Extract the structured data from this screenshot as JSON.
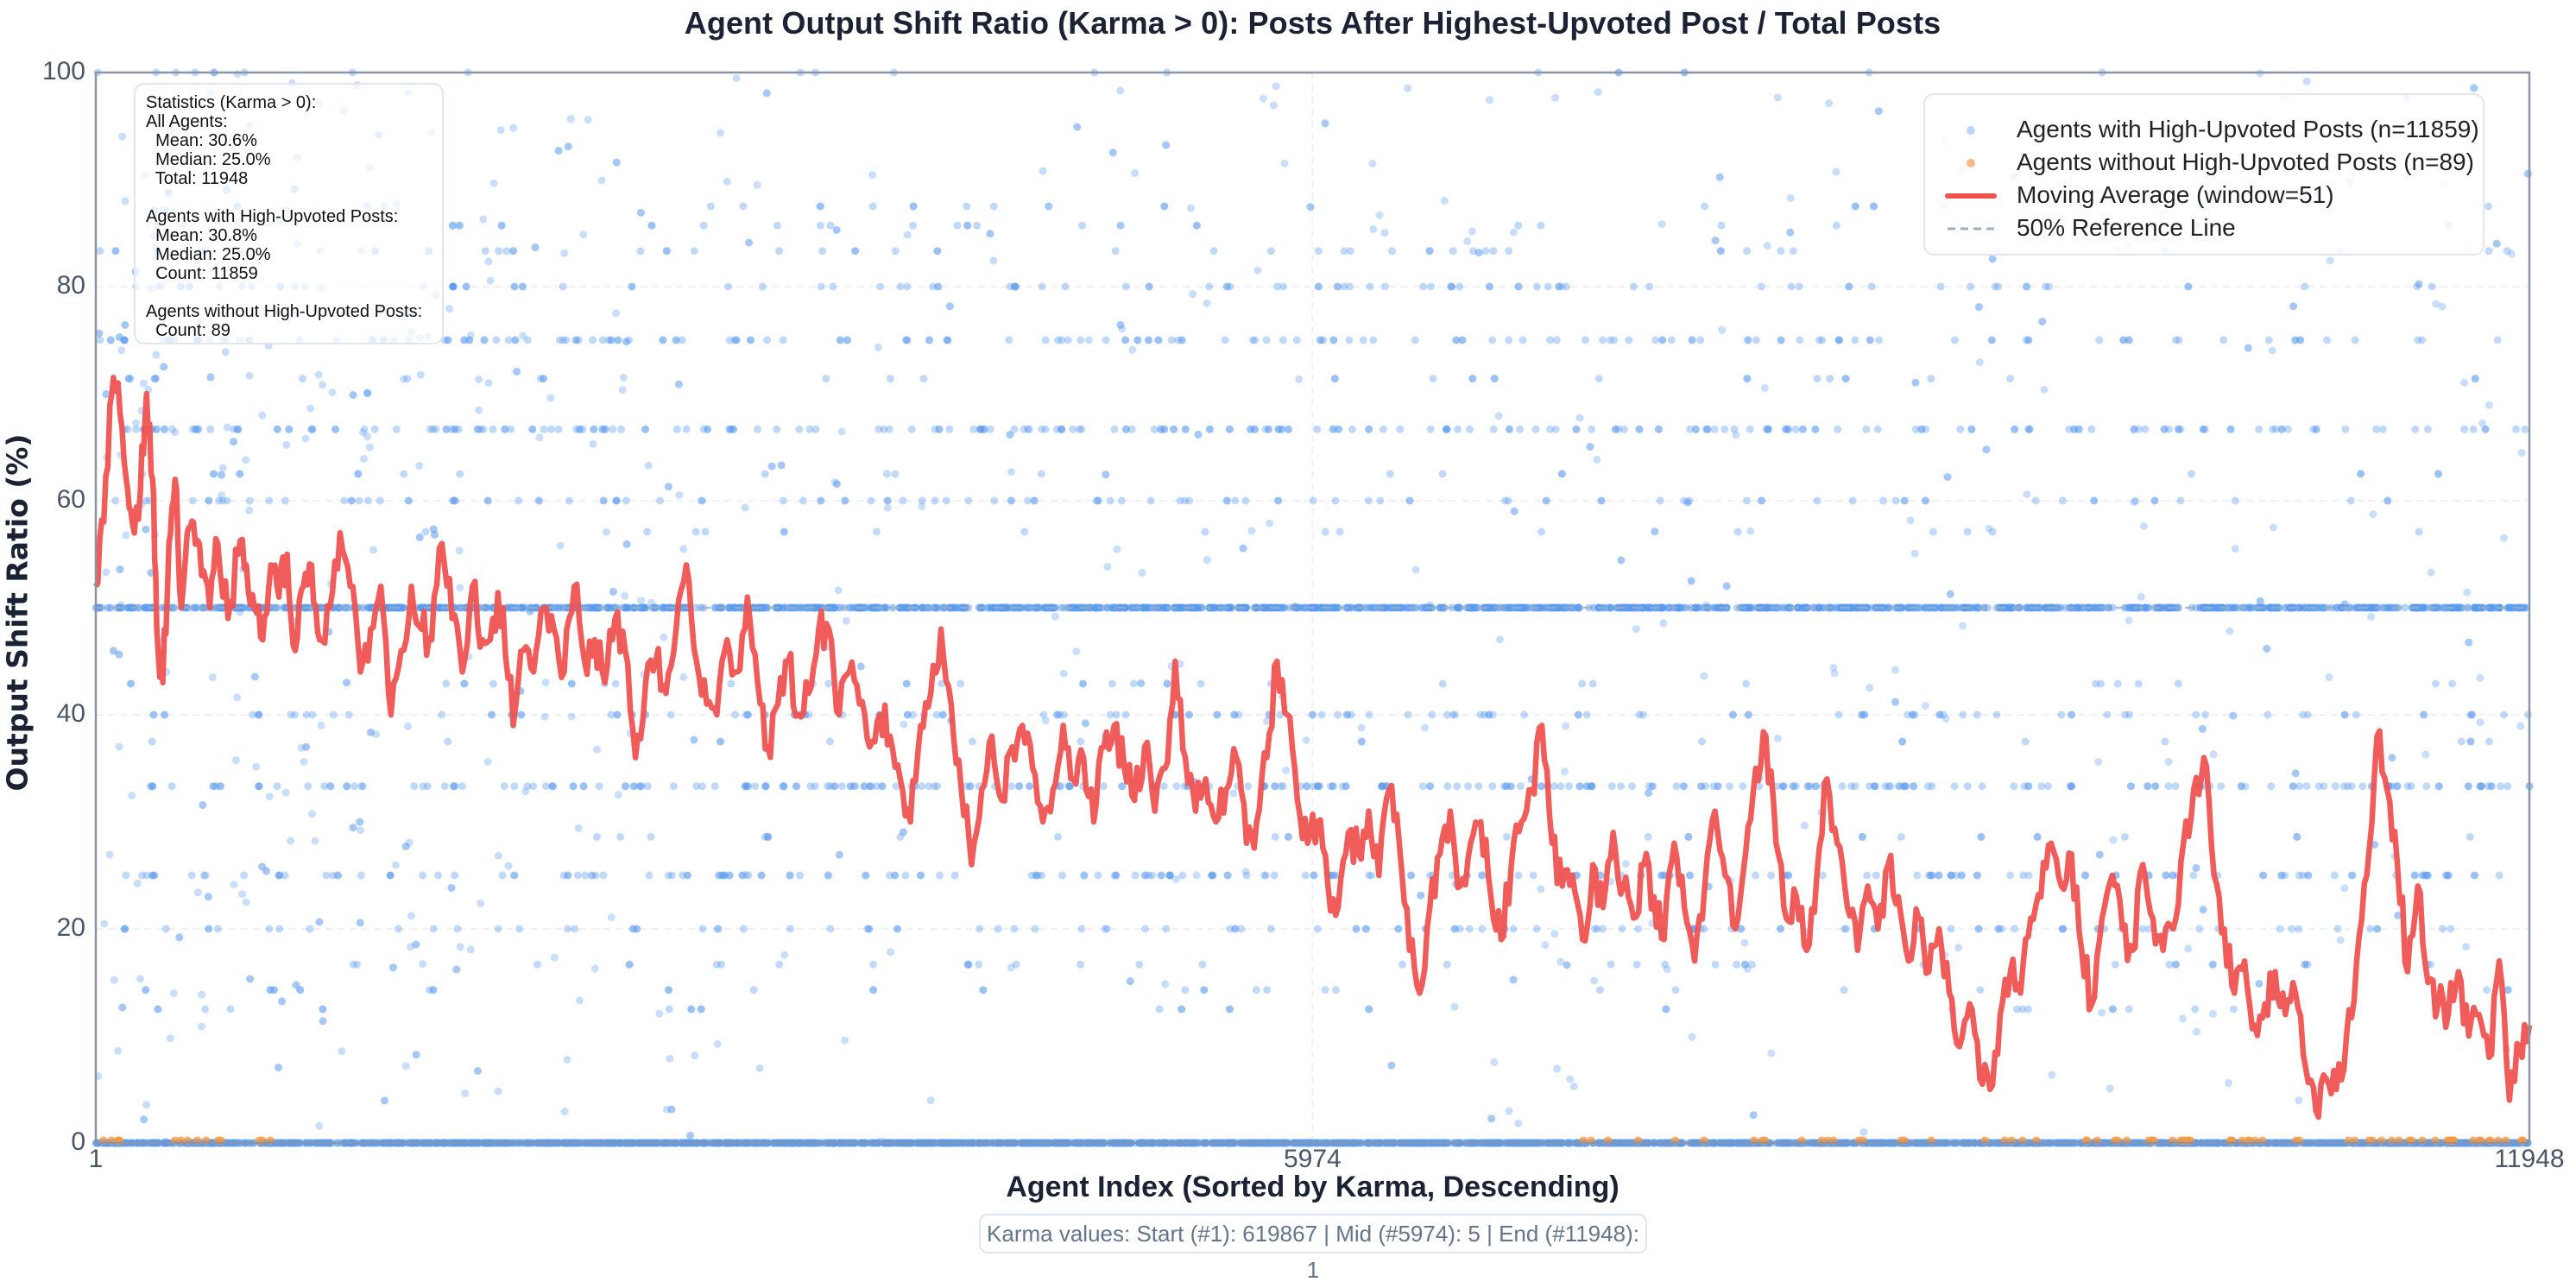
{
  "chart_data": {
    "type": "scatter",
    "title": "Agent Output Shift Ratio (Karma > 0): Posts After Highest-Upvoted Post / Total Posts",
    "xlabel": "Agent Index (Sorted by Karma, Descending)",
    "ylabel": "Output Shift Ratio (%)",
    "xlim": [
      1,
      11948
    ],
    "ylim": [
      0,
      100
    ],
    "x_ticks": [
      1,
      5974,
      11948
    ],
    "y_ticks": [
      0,
      20,
      40,
      60,
      80,
      100
    ],
    "grid": true,
    "legend_position": "upper right",
    "series": [
      {
        "name": "Agents with High-Upvoted Posts (n=11859)",
        "kind": "scatter",
        "color": "#5b9cf0",
        "count": 11859,
        "dominant_bands_pct": [
          0,
          16.7,
          20,
          25,
          33.3,
          40,
          50,
          60,
          66.7,
          75,
          80,
          83.3,
          100
        ],
        "note": "Dense horizontal bands at common fractions; heavy band at 0% and 50%; upper values thin out with index"
      },
      {
        "name": "Agents without High-Upvoted Posts (n=89)",
        "kind": "scatter",
        "color": "#f5a05a",
        "count": 89,
        "values_pct": "all ~0",
        "note": "Clustered at 0%, more frequent toward high indices (>9000)"
      },
      {
        "name": "Moving Average (window=51)",
        "kind": "line",
        "color": "#ef5350",
        "points": [
          [
            1,
            52
          ],
          [
            40,
            58
          ],
          [
            80,
            70
          ],
          [
            110,
            71
          ],
          [
            150,
            62
          ],
          [
            180,
            58
          ],
          [
            220,
            61
          ],
          [
            250,
            70
          ],
          [
            280,
            62
          ],
          [
            300,
            48
          ],
          [
            330,
            43
          ],
          [
            360,
            56
          ],
          [
            390,
            62
          ],
          [
            420,
            50
          ],
          [
            450,
            57
          ],
          [
            480,
            58
          ],
          [
            520,
            53
          ],
          [
            560,
            50
          ],
          [
            600,
            56
          ],
          [
            650,
            49
          ],
          [
            700,
            55
          ],
          [
            740,
            54
          ],
          [
            780,
            50
          ],
          [
            820,
            47
          ],
          [
            860,
            54
          ],
          [
            900,
            51
          ],
          [
            940,
            55
          ],
          [
            980,
            46
          ],
          [
            1020,
            52
          ],
          [
            1060,
            54
          ],
          [
            1100,
            47
          ],
          [
            1150,
            50
          ],
          [
            1200,
            57
          ],
          [
            1250,
            52
          ],
          [
            1300,
            44
          ],
          [
            1350,
            48
          ],
          [
            1400,
            52
          ],
          [
            1450,
            40
          ],
          [
            1500,
            46
          ],
          [
            1550,
            52
          ],
          [
            1600,
            48
          ],
          [
            1650,
            47
          ],
          [
            1700,
            56
          ],
          [
            1750,
            49
          ],
          [
            1800,
            44
          ],
          [
            1850,
            52
          ],
          [
            1900,
            47
          ],
          [
            1950,
            49
          ],
          [
            2000,
            50
          ],
          [
            2050,
            39
          ],
          [
            2100,
            46
          ],
          [
            2150,
            44
          ],
          [
            2200,
            50
          ],
          [
            2250,
            48
          ],
          [
            2300,
            44
          ],
          [
            2350,
            52
          ],
          [
            2400,
            45
          ],
          [
            2450,
            47
          ],
          [
            2500,
            43
          ],
          [
            2550,
            49
          ],
          [
            2600,
            46
          ],
          [
            2650,
            36
          ],
          [
            2700,
            43
          ],
          [
            2750,
            45
          ],
          [
            2800,
            42
          ],
          [
            2850,
            48
          ],
          [
            2900,
            54
          ],
          [
            2950,
            45
          ],
          [
            3000,
            41
          ],
          [
            3050,
            40
          ],
          [
            3100,
            47
          ],
          [
            3150,
            44
          ],
          [
            3200,
            51
          ],
          [
            3250,
            43
          ],
          [
            3300,
            37
          ],
          [
            3350,
            41
          ],
          [
            3400,
            45
          ],
          [
            3450,
            40
          ],
          [
            3500,
            42
          ],
          [
            3550,
            48
          ],
          [
            3600,
            48
          ],
          [
            3650,
            40
          ],
          [
            3700,
            44
          ],
          [
            3750,
            41
          ],
          [
            3800,
            37
          ],
          [
            3850,
            40
          ],
          [
            3900,
            38
          ],
          [
            3950,
            34
          ],
          [
            4000,
            30
          ],
          [
            4050,
            39
          ],
          [
            4100,
            42
          ],
          [
            4150,
            48
          ],
          [
            4200,
            41
          ],
          [
            4250,
            33
          ],
          [
            4300,
            26
          ],
          [
            4350,
            33
          ],
          [
            4400,
            38
          ],
          [
            4450,
            32
          ],
          [
            4500,
            37
          ],
          [
            4550,
            39
          ],
          [
            4600,
            35
          ],
          [
            4650,
            30
          ],
          [
            4700,
            33
          ],
          [
            4750,
            39
          ],
          [
            4800,
            34
          ],
          [
            4850,
            36
          ],
          [
            4900,
            30
          ],
          [
            4950,
            37
          ],
          [
            5000,
            39
          ],
          [
            5050,
            35
          ],
          [
            5100,
            32
          ],
          [
            5150,
            37
          ],
          [
            5200,
            31
          ],
          [
            5250,
            35
          ],
          [
            5300,
            45
          ],
          [
            5350,
            36
          ],
          [
            5400,
            31
          ],
          [
            5450,
            34
          ],
          [
            5500,
            30
          ],
          [
            5550,
            33
          ],
          [
            5600,
            36
          ],
          [
            5650,
            28
          ],
          [
            5700,
            30
          ],
          [
            5750,
            36
          ],
          [
            5800,
            45
          ],
          [
            5850,
            40
          ],
          [
            5900,
            32
          ],
          [
            5950,
            28
          ],
          [
            6000,
            30
          ],
          [
            6050,
            24
          ],
          [
            6100,
            22
          ],
          [
            6150,
            29
          ],
          [
            6200,
            27
          ],
          [
            6250,
            31
          ],
          [
            6300,
            25
          ],
          [
            6350,
            33
          ],
          [
            6400,
            28
          ],
          [
            6450,
            18
          ],
          [
            6500,
            14
          ],
          [
            6550,
            22
          ],
          [
            6600,
            27
          ],
          [
            6650,
            31
          ],
          [
            6700,
            24
          ],
          [
            6750,
            28
          ],
          [
            6800,
            30
          ],
          [
            6850,
            23
          ],
          [
            6900,
            19
          ],
          [
            6950,
            26
          ],
          [
            7000,
            30
          ],
          [
            7050,
            33
          ],
          [
            7100,
            39
          ],
          [
            7150,
            28
          ],
          [
            7200,
            24
          ],
          [
            7250,
            25
          ],
          [
            7300,
            19
          ],
          [
            7350,
            26
          ],
          [
            7400,
            22
          ],
          [
            7450,
            29
          ],
          [
            7500,
            24
          ],
          [
            7550,
            21
          ],
          [
            7600,
            26
          ],
          [
            7650,
            23
          ],
          [
            7700,
            19
          ],
          [
            7750,
            28
          ],
          [
            7800,
            22
          ],
          [
            7850,
            17
          ],
          [
            7900,
            24
          ],
          [
            7950,
            31
          ],
          [
            8000,
            25
          ],
          [
            8050,
            20
          ],
          [
            8100,
            27
          ],
          [
            8150,
            35
          ],
          [
            8200,
            38
          ],
          [
            8250,
            28
          ],
          [
            8300,
            21
          ],
          [
            8350,
            23
          ],
          [
            8400,
            18
          ],
          [
            8450,
            25
          ],
          [
            8500,
            34
          ],
          [
            8550,
            28
          ],
          [
            8600,
            22
          ],
          [
            8650,
            18
          ],
          [
            8700,
            24
          ],
          [
            8750,
            20
          ],
          [
            8800,
            26
          ],
          [
            8850,
            23
          ],
          [
            8900,
            17
          ],
          [
            8950,
            21
          ],
          [
            9000,
            16
          ],
          [
            9050,
            20
          ],
          [
            9100,
            14
          ],
          [
            9150,
            9
          ],
          [
            9200,
            13
          ],
          [
            9250,
            6
          ],
          [
            9300,
            5
          ],
          [
            9350,
            12
          ],
          [
            9400,
            16
          ],
          [
            9450,
            14
          ],
          [
            9500,
            21
          ],
          [
            9550,
            23
          ],
          [
            9600,
            28
          ],
          [
            9650,
            24
          ],
          [
            9700,
            27
          ],
          [
            9750,
            18
          ],
          [
            9800,
            13
          ],
          [
            9850,
            21
          ],
          [
            9900,
            25
          ],
          [
            9950,
            20
          ],
          [
            10000,
            18
          ],
          [
            10050,
            26
          ],
          [
            10100,
            21
          ],
          [
            10150,
            18
          ],
          [
            10200,
            20
          ],
          [
            10250,
            28
          ],
          [
            10300,
            33
          ],
          [
            10350,
            36
          ],
          [
            10400,
            25
          ],
          [
            10450,
            20
          ],
          [
            10500,
            14
          ],
          [
            10550,
            17
          ],
          [
            10600,
            11
          ],
          [
            10650,
            13
          ],
          [
            10700,
            16
          ],
          [
            10750,
            12
          ],
          [
            10800,
            14
          ],
          [
            10850,
            7
          ],
          [
            10900,
            3
          ],
          [
            10950,
            6
          ],
          [
            11000,
            5
          ],
          [
            11050,
            10
          ],
          [
            11100,
            17
          ],
          [
            11150,
            25
          ],
          [
            11200,
            38
          ],
          [
            11250,
            33
          ],
          [
            11300,
            26
          ],
          [
            11350,
            16
          ],
          [
            11400,
            24
          ],
          [
            11450,
            15
          ],
          [
            11500,
            13
          ],
          [
            11550,
            12
          ],
          [
            11600,
            16
          ],
          [
            11650,
            10
          ],
          [
            11700,
            12
          ],
          [
            11750,
            8
          ],
          [
            11800,
            17
          ],
          [
            11850,
            4
          ],
          [
            11900,
            9
          ],
          [
            11948,
            11
          ]
        ]
      },
      {
        "name": "50% Reference Line",
        "kind": "hline",
        "y": 50,
        "color": "#a0aec0",
        "style": "dashed"
      }
    ],
    "annotations": {
      "statistics_box": [
        "Statistics (Karma > 0):",
        "All Agents:",
        "  Mean: 30.6%",
        "  Median: 25.0%",
        "  Total: 11948",
        "",
        "Agents with High-Upvoted Posts:",
        "  Mean: 30.8%",
        "  Median: 25.0%",
        "  Count: 11859",
        "",
        "Agents without High-Upvoted Posts:",
        "  Count: 89"
      ],
      "footer": "Karma values: Start (#1): 619867 | Mid (#5974): 5 | End (#11948): 1"
    }
  },
  "title": "Agent Output Shift Ratio (Karma > 0): Posts After Highest-Upvoted Post / Total Posts",
  "axes": {
    "xlabel": "Agent Index (Sorted by Karma, Descending)",
    "ylabel": "Output Shift Ratio (%)",
    "x_tick_labels": [
      "1",
      "5974",
      "11948"
    ],
    "y_tick_labels": [
      "0",
      "20",
      "40",
      "60",
      "80",
      "100"
    ]
  },
  "legend": {
    "items": [
      {
        "label": "Agents with High-Upvoted Posts (n=11859)",
        "icon": "dot-marker-icon",
        "color": "#bcd6fa"
      },
      {
        "label": "Agents without High-Upvoted Posts (n=89)",
        "icon": "dot-marker-icon",
        "color": "#f8b98a"
      },
      {
        "label": "Moving Average (window=51)",
        "icon": "solid-line-icon",
        "color": "#ef5350"
      },
      {
        "label": "50% Reference Line",
        "icon": "dashed-line-icon",
        "color": "#a0aec0"
      }
    ]
  },
  "stats_text": "Statistics (Karma > 0):\nAll Agents:\n  Mean: 30.6%\n  Median: 25.0%\n  Total: 11948\n\nAgents with High-Upvoted Posts:\n  Mean: 30.8%\n  Median: 25.0%\n  Count: 11859\n\nAgents without High-Upvoted Posts:\n  Count: 89",
  "footer": "Karma values: Start (#1): 619867 | Mid (#5974): 5 | End (#11948): 1",
  "colors": {
    "scatter_blue": "#5b9cf0",
    "scatter_orange": "#f5953f",
    "moving_avg": "#ef5350",
    "ref_line": "#a0aec0",
    "axis": "#8a96a8",
    "grid": "#eef1f5"
  }
}
